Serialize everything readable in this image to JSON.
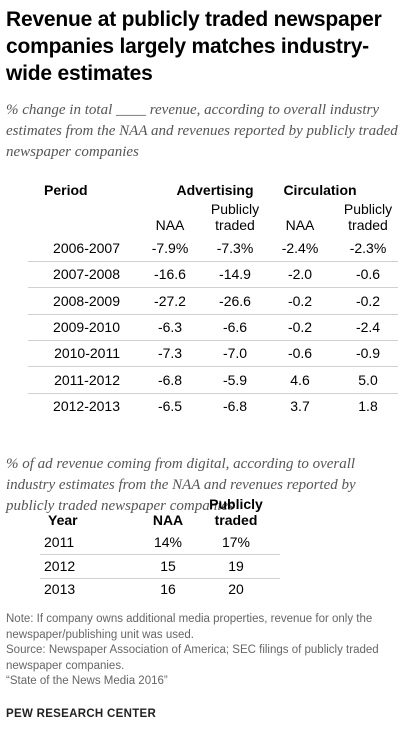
{
  "title": "Revenue at publicly traded newspaper companies largely matches industry-wide estimates",
  "table1": {
    "subtitle": "% change in total ____ revenue, according to overall industry estimates from the NAA and revenues reported by publicly traded newspaper companies",
    "headers": {
      "period": "Period",
      "advertising": "Advertising",
      "circulation": "Circulation"
    },
    "subheaders": {
      "naa": "NAA",
      "publicly_traded": "Publicly traded"
    },
    "rows": [
      {
        "period": "2006-2007",
        "ad_naa": "-7.9%",
        "ad_pub": "-7.3%",
        "circ_naa": "-2.4%",
        "circ_pub": "-2.3%"
      },
      {
        "period": "2007-2008",
        "ad_naa": "-16.6",
        "ad_pub": "-14.9",
        "circ_naa": "-2.0",
        "circ_pub": "-0.6"
      },
      {
        "period": "2008-2009",
        "ad_naa": "-27.2",
        "ad_pub": "-26.6",
        "circ_naa": "-0.2",
        "circ_pub": "-0.2"
      },
      {
        "period": "2009-2010",
        "ad_naa": "-6.3",
        "ad_pub": "-6.6",
        "circ_naa": "-0.2",
        "circ_pub": "-2.4"
      },
      {
        "period": "2010-2011",
        "ad_naa": "-7.3",
        "ad_pub": "-7.0",
        "circ_naa": "-0.6",
        "circ_pub": "-0.9"
      },
      {
        "period": "2011-2012",
        "ad_naa": "-6.8",
        "ad_pub": "-5.9",
        "circ_naa": "4.6",
        "circ_pub": "5.0"
      },
      {
        "period": "2012-2013",
        "ad_naa": "-6.5",
        "ad_pub": "-6.8",
        "circ_naa": "3.7",
        "circ_pub": "1.8"
      }
    ]
  },
  "table2": {
    "subtitle": "% of ad revenue coming from digital, according to overall industry estimates from the NAA and revenues reported by publicly traded newspaper companies",
    "headers": {
      "year": "Year",
      "naa": "NAA",
      "publicly_traded": "Publicly traded"
    },
    "rows": [
      {
        "year": "2011",
        "naa": "14%",
        "pub": "17%"
      },
      {
        "year": "2012",
        "naa": "15",
        "pub": "19"
      },
      {
        "year": "2013",
        "naa": "16",
        "pub": "20"
      }
    ]
  },
  "footer": {
    "note": "Note: If company owns additional media properties, revenue for only the newspaper/publishing unit was used.",
    "source": "Source: Newspaper Association of America; SEC filings of publicly traded newspaper companies.",
    "report": "“State of the News Media 2016”",
    "brand": "PEW RESEARCH CENTER"
  }
}
